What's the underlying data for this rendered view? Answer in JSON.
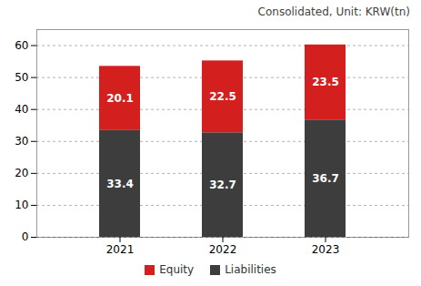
{
  "chart_data": {
    "type": "bar",
    "stacked": true,
    "subtitle": "Consolidated, Unit: KRW(tn)",
    "categories": [
      "2021",
      "2022",
      "2023"
    ],
    "series": [
      {
        "name": "Liabilities",
        "color": "#3d3d3d",
        "values": [
          33.4,
          32.7,
          36.7
        ]
      },
      {
        "name": "Equity",
        "color": "#d41f1f",
        "values": [
          20.1,
          22.5,
          23.5
        ]
      }
    ],
    "ylim": [
      0,
      65
    ],
    "yticks": [
      0,
      10,
      20,
      30,
      40,
      50,
      60
    ],
    "grid": true,
    "data_labels": true,
    "legend": "bottom"
  }
}
